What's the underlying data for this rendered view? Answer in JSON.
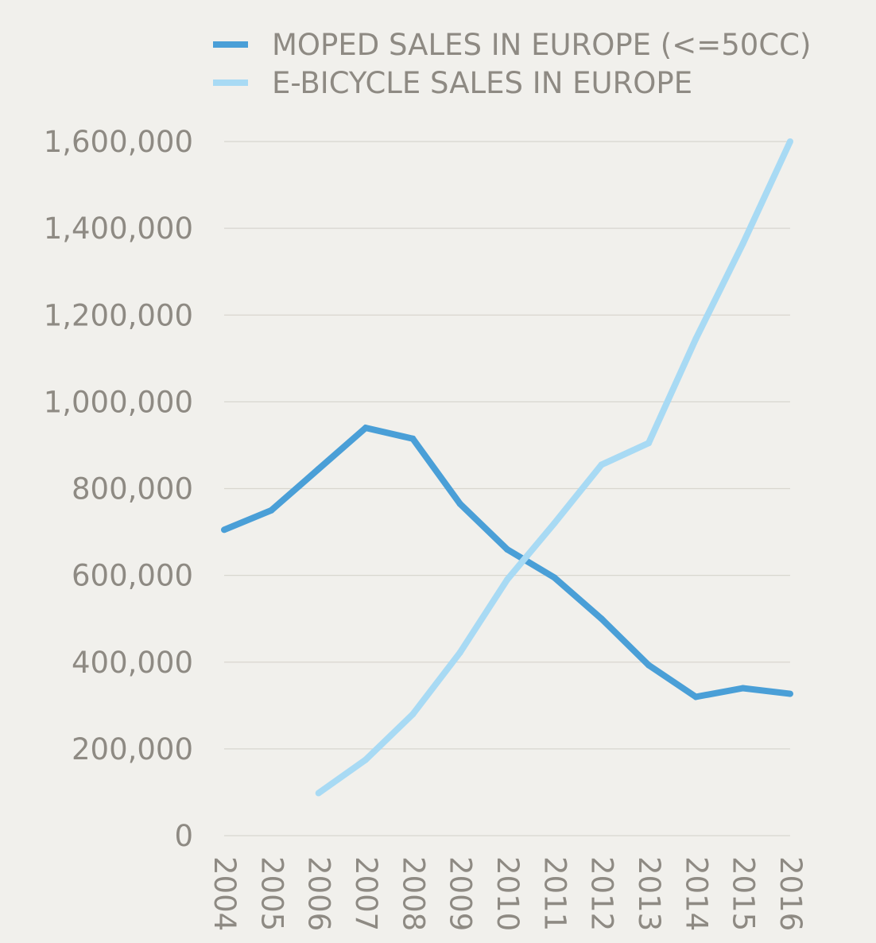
{
  "colors": {
    "background": "#f1f0ec",
    "grid": "#d8d6cf",
    "text": "#8e8a83",
    "moped": "#4a9fd7",
    "ebike": "#a8daf4"
  },
  "chart_data": {
    "type": "line",
    "title": "",
    "xlabel": "",
    "ylabel": "",
    "legend_position": "top",
    "grid": true,
    "categories": [
      "2004",
      "2005",
      "2006",
      "2007",
      "2008",
      "2009",
      "2010",
      "2011",
      "2012",
      "2013",
      "2014",
      "2015",
      "2016"
    ],
    "ylim": [
      0,
      1600000
    ],
    "y_ticks": [
      0,
      200000,
      400000,
      600000,
      800000,
      1000000,
      1200000,
      1400000,
      1600000
    ],
    "y_tick_labels": [
      "0",
      "200,000",
      "400,000",
      "600,000",
      "800,000",
      "1,000,000",
      "1,200,000",
      "1,400,000",
      "1,600,000"
    ],
    "series": [
      {
        "name": "MOPED SALES IN EUROPE (<=50CC)",
        "color": "#4a9fd7",
        "values": [
          705000,
          750000,
          845000,
          940000,
          915000,
          765000,
          660000,
          595000,
          500000,
          393000,
          320000,
          340000,
          327000
        ]
      },
      {
        "name": "E-BICYCLE SALES IN EUROPE",
        "color": "#a8daf4",
        "values": [
          null,
          null,
          98000,
          175000,
          280000,
          422000,
          590000,
          720000,
          855000,
          905000,
          1145000,
          1365000,
          1600000
        ]
      }
    ]
  }
}
